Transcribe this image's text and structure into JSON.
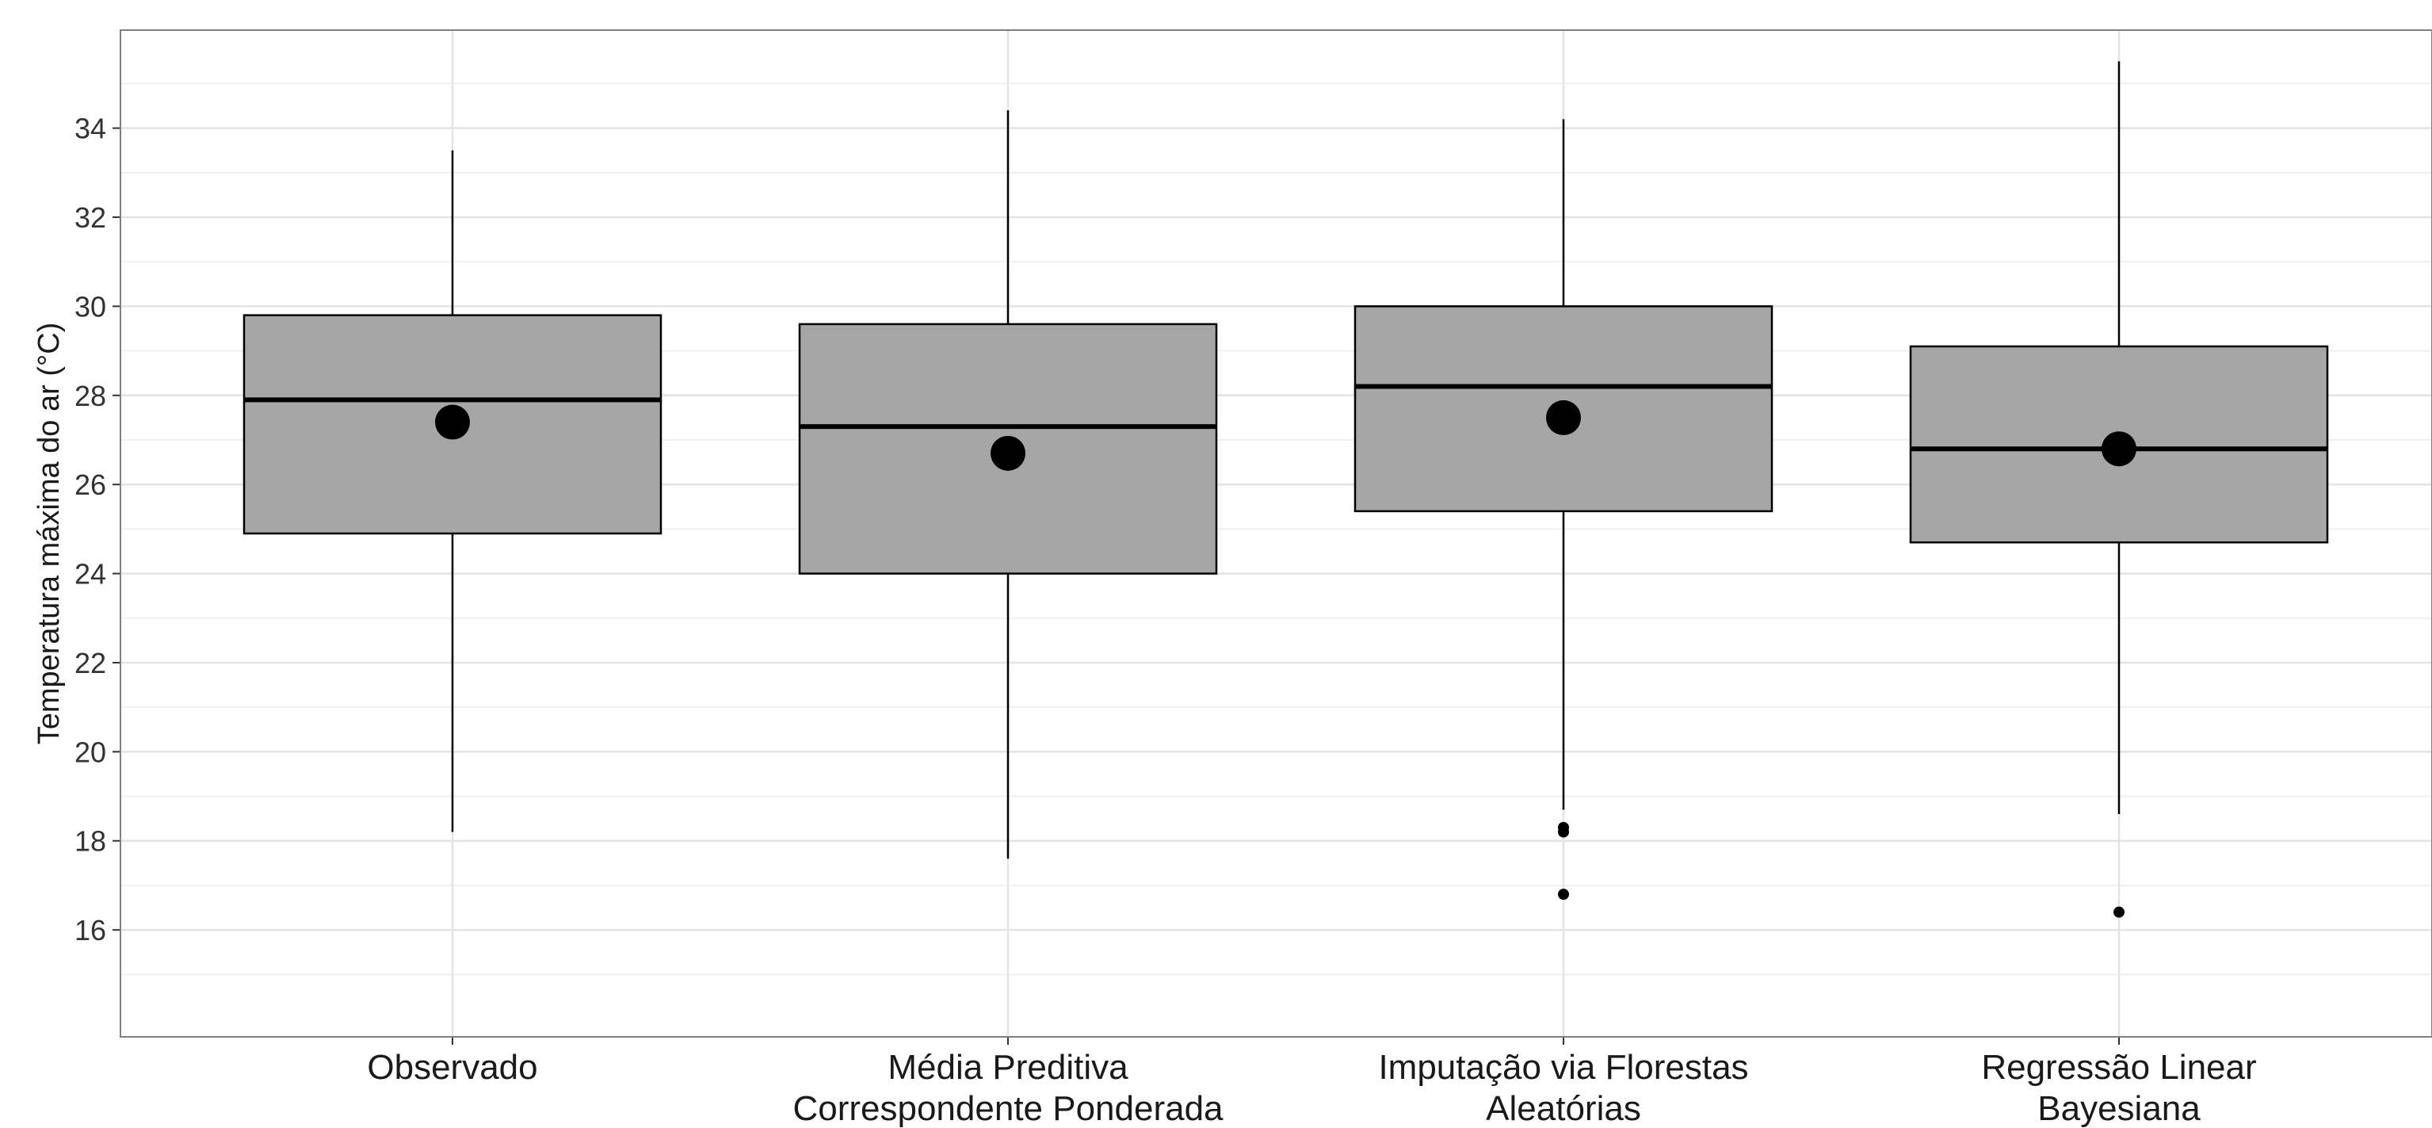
{
  "chart_data": {
    "type": "boxplot",
    "title": "",
    "xlabel": "",
    "ylabel": "Temperatura máxima do ar (°C)",
    "ylim": [
      13.6,
      36.2
    ],
    "y_ticks": [
      16,
      18,
      20,
      22,
      24,
      26,
      28,
      30,
      32,
      34
    ],
    "grid": true,
    "theme": {
      "box_fill": "#a6a6a6",
      "line_color": "#000000",
      "grid_major": "#e3e3e3",
      "grid_minor": "#f1f1f1",
      "panel_border": "#7f7f7f"
    },
    "categories": [
      [
        "Observado"
      ],
      [
        "Média Preditiva",
        "Correspondente Ponderada"
      ],
      [
        "Imputação via Florestas",
        "Aleatórias"
      ],
      [
        "Regressão Linear",
        "Bayesiana"
      ]
    ],
    "boxes": [
      {
        "min": 18.2,
        "q1": 24.9,
        "median": 27.9,
        "q3": 29.8,
        "max": 33.5,
        "mean": 27.4,
        "outliers": []
      },
      {
        "min": 17.6,
        "q1": 24.0,
        "median": 27.3,
        "q3": 29.6,
        "max": 34.4,
        "mean": 26.7,
        "outliers": []
      },
      {
        "min": 18.7,
        "q1": 25.4,
        "median": 28.2,
        "q3": 30.0,
        "max": 34.2,
        "mean": 27.5,
        "outliers": [
          18.3,
          18.2,
          16.8
        ]
      },
      {
        "min": 18.6,
        "q1": 24.7,
        "median": 26.8,
        "q3": 29.1,
        "max": 35.5,
        "mean": 26.8,
        "outliers": [
          16.4
        ]
      }
    ]
  }
}
